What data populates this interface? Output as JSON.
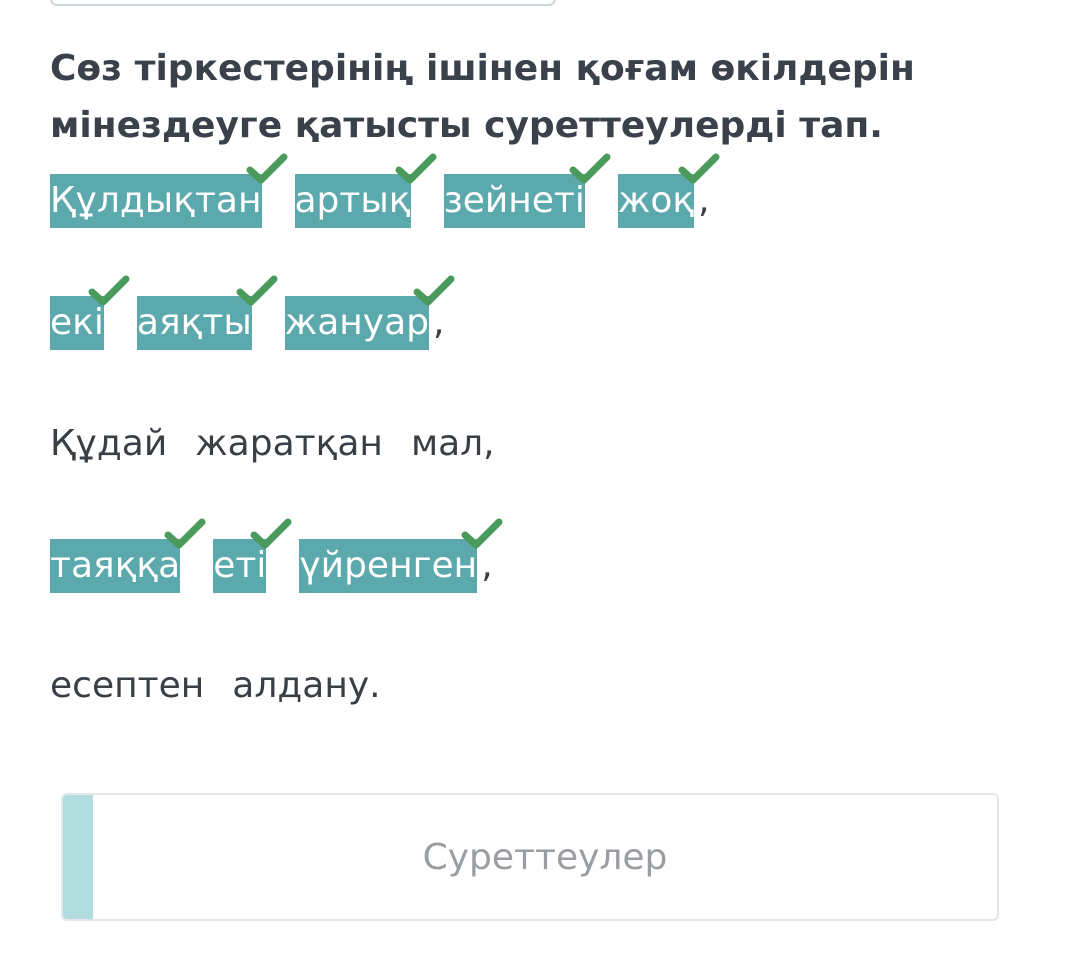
{
  "question": {
    "line1": "Сөз тіркестерінің ішінен қоғам өкілдерін",
    "line2": "мінездеуге қатысты суреттеулерді тап."
  },
  "phrases": [
    {
      "words": [
        {
          "text": "Құлдықтан",
          "selected": true,
          "correct": true
        },
        {
          "text": "артық",
          "selected": true,
          "correct": true
        },
        {
          "text": "зейнеті",
          "selected": true,
          "correct": true
        },
        {
          "text": "жоқ",
          "selected": true,
          "correct": true
        }
      ],
      "punct": ","
    },
    {
      "words": [
        {
          "text": "екі",
          "selected": true,
          "correct": true
        },
        {
          "text": "аяқты",
          "selected": true,
          "correct": true
        },
        {
          "text": "жануар",
          "selected": true,
          "correct": true
        }
      ],
      "punct": ","
    },
    {
      "words": [
        {
          "text": "Құдай",
          "selected": false,
          "correct": false
        },
        {
          "text": "жаратқан",
          "selected": false,
          "correct": false
        },
        {
          "text": "мал,",
          "selected": false,
          "correct": false
        }
      ],
      "punct": ""
    },
    {
      "words": [
        {
          "text": "таяққа",
          "selected": true,
          "correct": true
        },
        {
          "text": "еті",
          "selected": true,
          "correct": true
        },
        {
          "text": "үйренген",
          "selected": true,
          "correct": true
        }
      ],
      "punct": ","
    },
    {
      "words": [
        {
          "text": "есептен",
          "selected": false,
          "correct": false
        },
        {
          "text": "алдану.",
          "selected": false,
          "correct": false
        }
      ],
      "punct": ""
    }
  ],
  "answer_box": {
    "label": "Суреттеулер"
  },
  "colors": {
    "selected_bg": "#5ba8ad",
    "check": "#4a9a5c",
    "accent": "#b2dcdd"
  },
  "icons": {
    "correct": "checkmark-icon"
  }
}
